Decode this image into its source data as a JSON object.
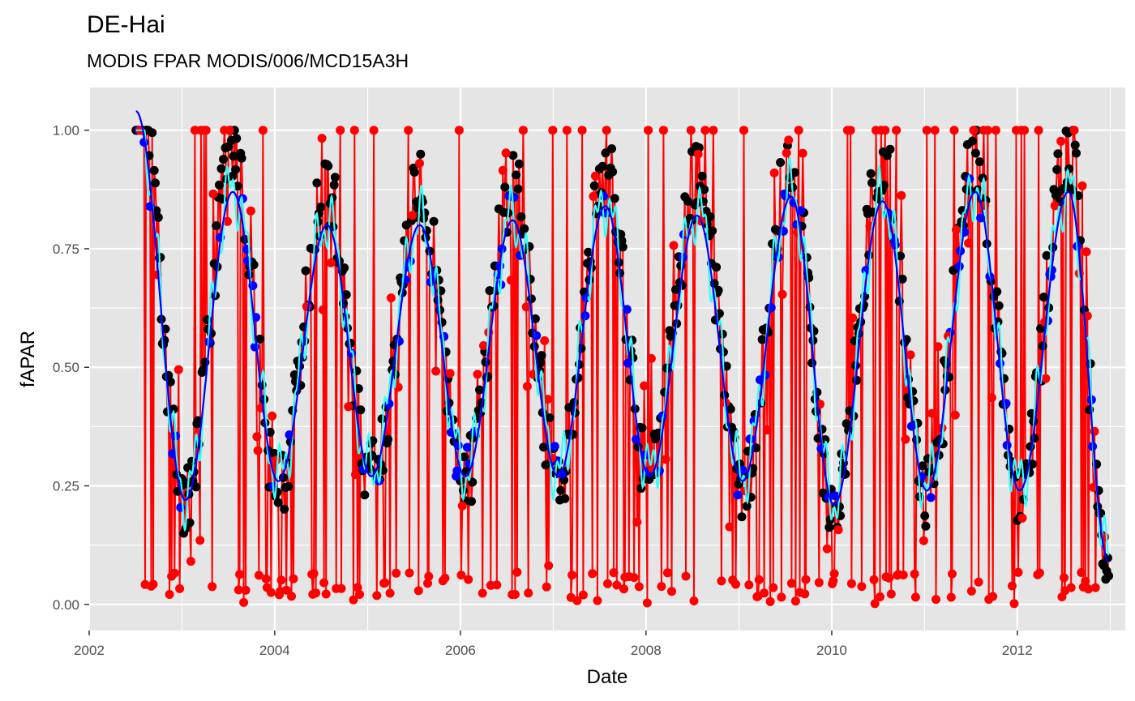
{
  "chart_data": {
    "type": "scatter",
    "title": "DE-Hai",
    "subtitle": "MODIS FPAR MODIS/006/MCD15A3H",
    "xlabel": "Date",
    "ylabel": "fAPAR",
    "x_ticks": [
      "2002",
      "2004",
      "2006",
      "2008",
      "2010",
      "2012"
    ],
    "y_ticks": [
      "0.00",
      "0.25",
      "0.50",
      "0.75",
      "1.00"
    ],
    "xlim": [
      "2002-01-01",
      "2013-03-01"
    ],
    "ylim": [
      -0.055,
      1.09
    ],
    "grid": true,
    "legend": "none",
    "colors": {
      "panel": "#e5e5e5",
      "grid": "#ffffff",
      "raw_points": "#000000",
      "filled_points": "#0000ff",
      "flagged_points": "#ff0000",
      "raw_line": "#ff0000",
      "smooth_fine": "#33ffff",
      "smooth_coarse": "#0000ff"
    },
    "seasonal_model": {
      "summer_peak": [
        {
          "date": "2003-07-20",
          "value": 0.87
        },
        {
          "date": "2004-07-25",
          "value": 0.8
        },
        {
          "date": "2005-07-25",
          "value": 0.8
        },
        {
          "date": "2006-07-25",
          "value": 0.81
        },
        {
          "date": "2007-07-25",
          "value": 0.84
        },
        {
          "date": "2008-07-20",
          "value": 0.82
        },
        {
          "date": "2009-07-25",
          "value": 0.86
        },
        {
          "date": "2010-07-20",
          "value": 0.85
        },
        {
          "date": "2011-07-20",
          "value": 0.87
        },
        {
          "date": "2012-07-20",
          "value": 0.87
        }
      ],
      "winter_trough": [
        {
          "date": "2003-01-15",
          "value": 0.22
        },
        {
          "date": "2004-01-15",
          "value": 0.26
        },
        {
          "date": "2005-01-15",
          "value": 0.27
        },
        {
          "date": "2006-01-20",
          "value": 0.27
        },
        {
          "date": "2007-01-20",
          "value": 0.27
        },
        {
          "date": "2008-01-15",
          "value": 0.27
        },
        {
          "date": "2009-01-15",
          "value": 0.26
        },
        {
          "date": "2010-01-10",
          "value": 0.21
        },
        {
          "date": "2011-01-10",
          "value": 0.24
        },
        {
          "date": "2012-01-10",
          "value": 0.24
        }
      ],
      "series_start": "2002-07-04",
      "series_end": "2012-12-26",
      "start_value": 1.04,
      "end_value": 0.09,
      "interval_days": 4
    }
  }
}
